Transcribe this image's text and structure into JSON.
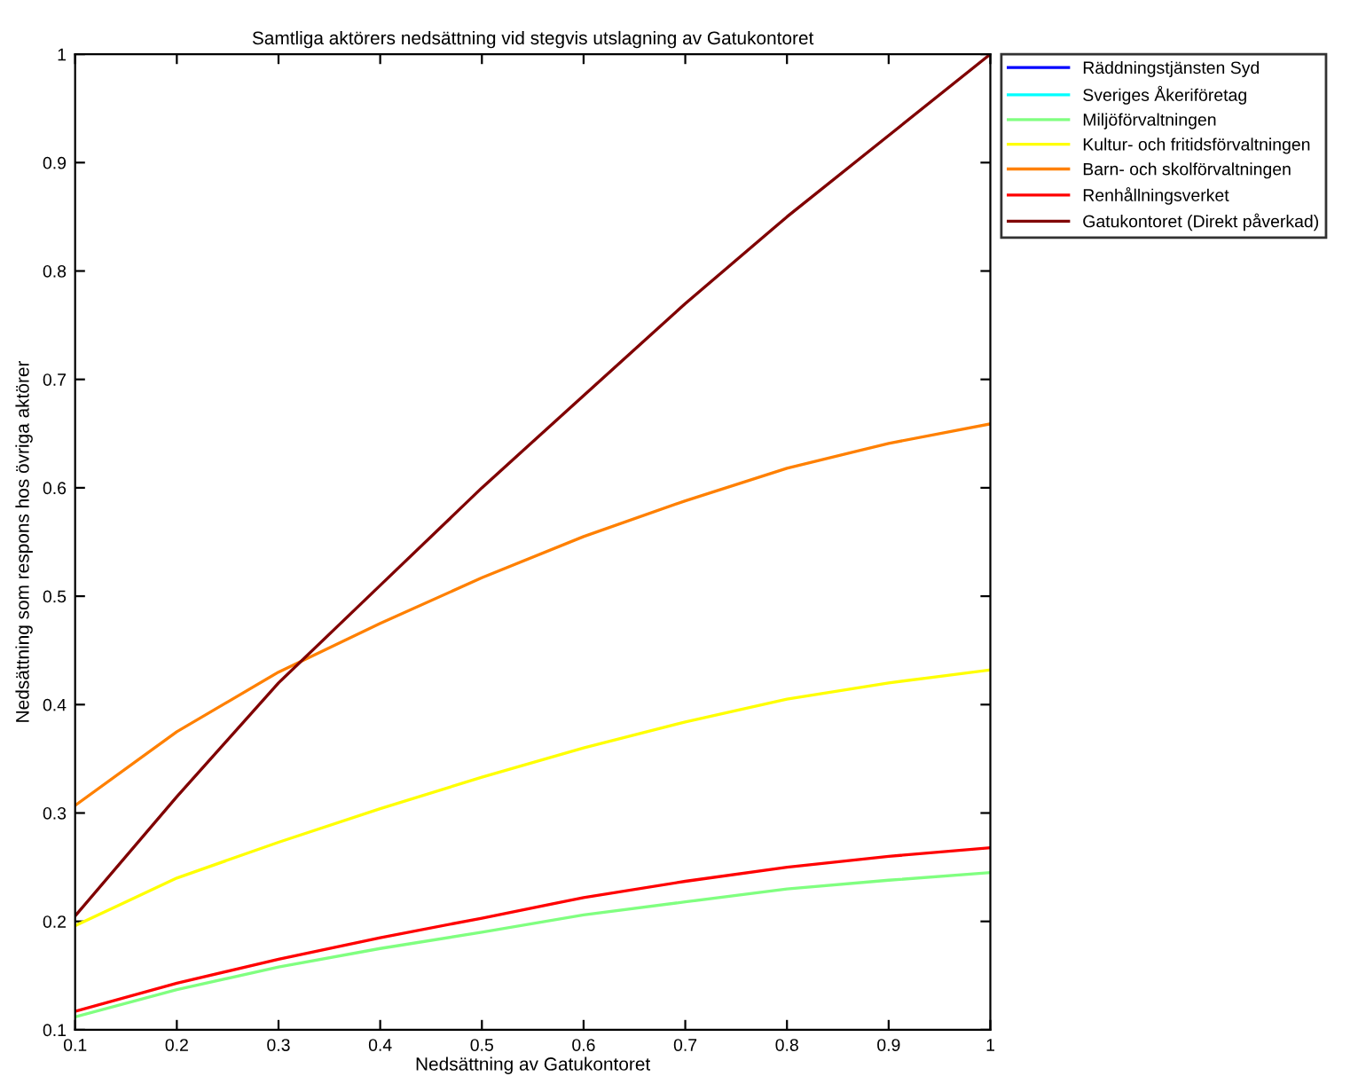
{
  "chart_data": {
    "type": "line",
    "title": "Samtliga aktörers nedsättning vid stegvis utslagning av Gatukontoret",
    "xlabel": "Nedsättning av Gatukontoret",
    "ylabel": "Nedsättning som respons hos övriga aktörer",
    "x": [
      0.1,
      0.2,
      0.3,
      0.4,
      0.5,
      0.6,
      0.7,
      0.8,
      0.9,
      1.0
    ],
    "series": [
      {
        "name": "Räddningstjänsten Syd",
        "color": "#0000ff",
        "values": [
          null,
          null,
          null,
          null,
          null,
          null,
          null,
          null,
          null,
          null
        ]
      },
      {
        "color": "#0066ff",
        "values": [
          null,
          null,
          null,
          null,
          null,
          null,
          null,
          null,
          null,
          null
        ]
      },
      {
        "name": "Sveriges Åkeriföretag",
        "color": "#00ffff",
        "values": [
          null,
          null,
          null,
          null,
          null,
          null,
          null,
          null,
          null,
          null
        ]
      },
      {
        "name": "Miljöförvaltningen",
        "color": "#80ff80",
        "values": [
          0.112,
          0.137,
          0.158,
          0.175,
          0.19,
          0.206,
          0.218,
          0.23,
          0.238,
          0.245
        ]
      },
      {
        "name": "Kultur- och fritidsförvaltningen",
        "color": "#ffff00",
        "values": [
          0.196,
          0.24,
          0.273,
          0.304,
          0.333,
          0.36,
          0.384,
          0.405,
          0.42,
          0.432
        ]
      },
      {
        "name": "Barn- och skolförvaltningen",
        "color": "#ff8000",
        "values": [
          0.307,
          0.375,
          0.43,
          0.475,
          0.517,
          0.555,
          0.588,
          0.618,
          0.641,
          0.659
        ]
      },
      {
        "name": "Renhållningsverket",
        "color": "#ff0000",
        "values": [
          0.117,
          0.143,
          0.165,
          0.185,
          0.203,
          0.222,
          0.237,
          0.25,
          0.26,
          0.268
        ]
      },
      {
        "name": "Gatukontoret (Direkt påverkad)",
        "color": "#800000",
        "values": [
          0.205,
          0.315,
          0.42,
          0.51,
          0.6,
          0.685,
          0.77,
          0.85,
          0.925,
          1.0
        ]
      }
    ],
    "xlim": [
      0.1,
      1
    ],
    "xticks": [
      0.1,
      0.2,
      0.3,
      0.4,
      0.5,
      0.6,
      0.7,
      0.8,
      0.9,
      1
    ],
    "ylim": [
      0.1,
      1
    ],
    "yticks": [
      0.1,
      0.2,
      0.3,
      0.4,
      0.5,
      0.6,
      0.7,
      0.8,
      0.9,
      1
    ],
    "grid": false,
    "legend": "top right",
    "line_style": "solid",
    "marker": "none"
  }
}
